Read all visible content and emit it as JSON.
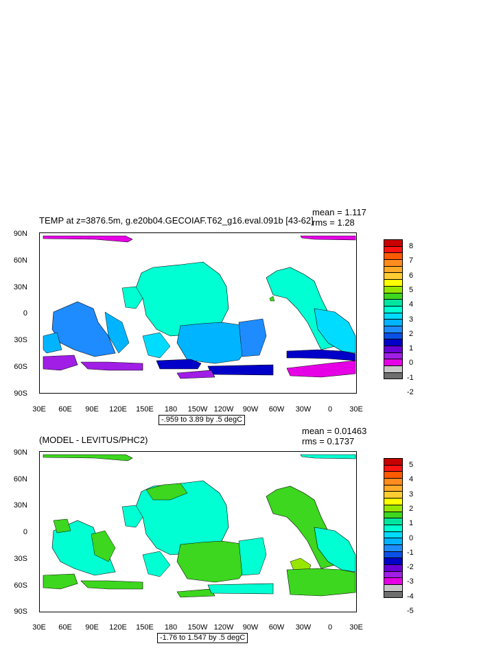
{
  "panels": [
    {
      "title": "TEMP at z=3876.5m, g.e20b04.GECOIAF.T62_g16.eval.091b [43-62]",
      "mean": "mean = 1.117",
      "rms": "rms = 1.28",
      "range_info": "-.959 to 3.89 by .5 degC",
      "lat_labels": [
        "90N",
        "60N",
        "30N",
        "0",
        "30S",
        "60S",
        "90S"
      ],
      "lon_labels": [
        "30E",
        "60E",
        "90E",
        "120E",
        "150E",
        "180",
        "150W",
        "120W",
        "90W",
        "60W",
        "30W",
        "0",
        "30E"
      ],
      "colorbar": {
        "labels": [
          "8",
          "7",
          "6",
          "5",
          "4",
          "3",
          "2",
          "1",
          "0",
          "-1",
          "-2"
        ],
        "colors": [
          "#c80000",
          "#ff1414",
          "#ff5a00",
          "#ff8c1e",
          "#ffaa28",
          "#ffcc32",
          "#ffff00",
          "#96e600",
          "#3cd71e",
          "#00e6a0",
          "#00ffd2",
          "#00dcff",
          "#00b4ff",
          "#1e8cff",
          "#0a50e6",
          "#0000c8",
          "#6a00d7",
          "#a01ee6",
          "#e600e6",
          "#c8c8c8",
          "#6e6e6e"
        ]
      }
    },
    {
      "title": "(MODEL - LEVITUS/PHC2)",
      "mean": "mean = 0.01463",
      "rms": "rms = 0.1737",
      "range_info": "-1.76 to 1.547 by .5 degC",
      "lat_labels": [
        "90N",
        "60N",
        "30N",
        "0",
        "30S",
        "60S",
        "90S"
      ],
      "lon_labels": [
        "30E",
        "60E",
        "90E",
        "120E",
        "150E",
        "180",
        "150W",
        "120W",
        "90W",
        "60W",
        "30W",
        "0",
        "30E"
      ],
      "colorbar": {
        "labels": [
          "5",
          "4",
          "3",
          "2",
          "1",
          "0",
          "-1",
          "-2",
          "-3",
          "-4",
          "-5"
        ],
        "colors": [
          "#c80000",
          "#ff1414",
          "#ff5a00",
          "#ff8c1e",
          "#ffaa28",
          "#ffcc32",
          "#ffff00",
          "#96e600",
          "#3cd71e",
          "#00e6a0",
          "#00ffd2",
          "#00dcff",
          "#00b4ff",
          "#1e8cff",
          "#0a50e6",
          "#0000c8",
          "#6a00d7",
          "#a01ee6",
          "#e600e6",
          "#c8c8c8",
          "#6e6e6e"
        ]
      }
    }
  ]
}
